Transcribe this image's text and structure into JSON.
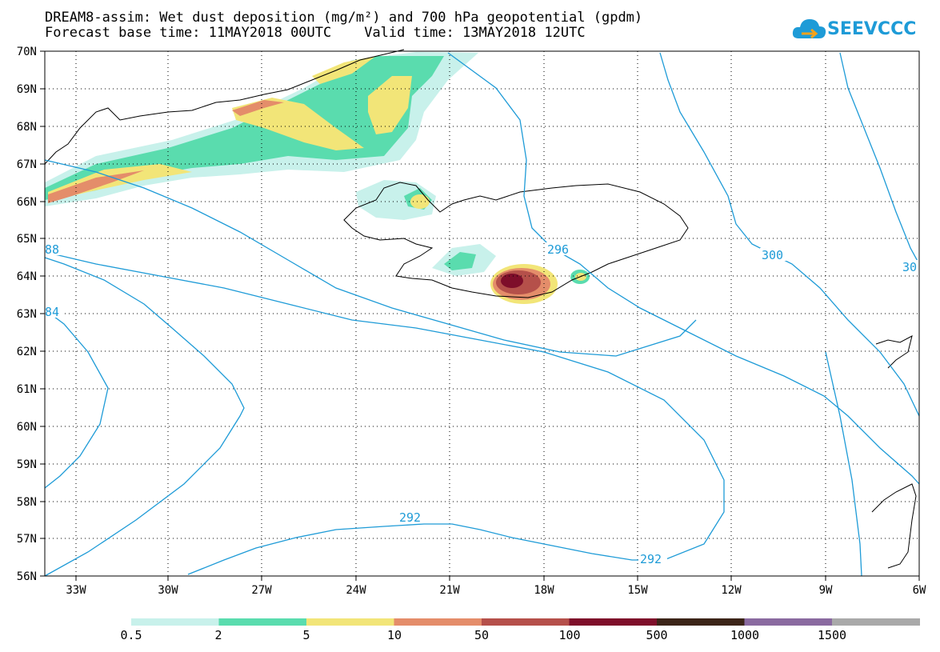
{
  "title": {
    "line1": "DREAM8-assim: Wet dust deposition (mg/m²) and 700 hPa geopotential (gpdm)",
    "line2_base_label": "Forecast base time:",
    "base_time": "11MAY2018 00UTC",
    "valid_label": "Valid time:",
    "valid_time": "13MAY2018 12UTC"
  },
  "logo": {
    "text": "SEEVCCC"
  },
  "map": {
    "lat_labels": [
      "70N",
      "69N",
      "68N",
      "67N",
      "66N",
      "65N",
      "64N",
      "63N",
      "62N",
      "61N",
      "60N",
      "59N",
      "58N",
      "57N",
      "56N"
    ],
    "lon_labels": [
      "33W",
      "30W",
      "27W",
      "24W",
      "21W",
      "18W",
      "15W",
      "12W",
      "9W",
      "6W"
    ],
    "contour_labels": [
      "88",
      "84",
      "296",
      "300",
      "30",
      "292",
      "292"
    ],
    "contour_color": "#1e9bd7"
  },
  "colorbar": {
    "labels": [
      "0.5",
      "2",
      "5",
      "10",
      "50",
      "100",
      "500",
      "1000",
      "1500"
    ],
    "colors": [
      "#c8f1eb",
      "#5adcae",
      "#f2e578",
      "#e48d6a",
      "#b5504a",
      "#7e0e2a",
      "#3b2418",
      "#8a6aa0",
      "#a9a9a9"
    ]
  }
}
